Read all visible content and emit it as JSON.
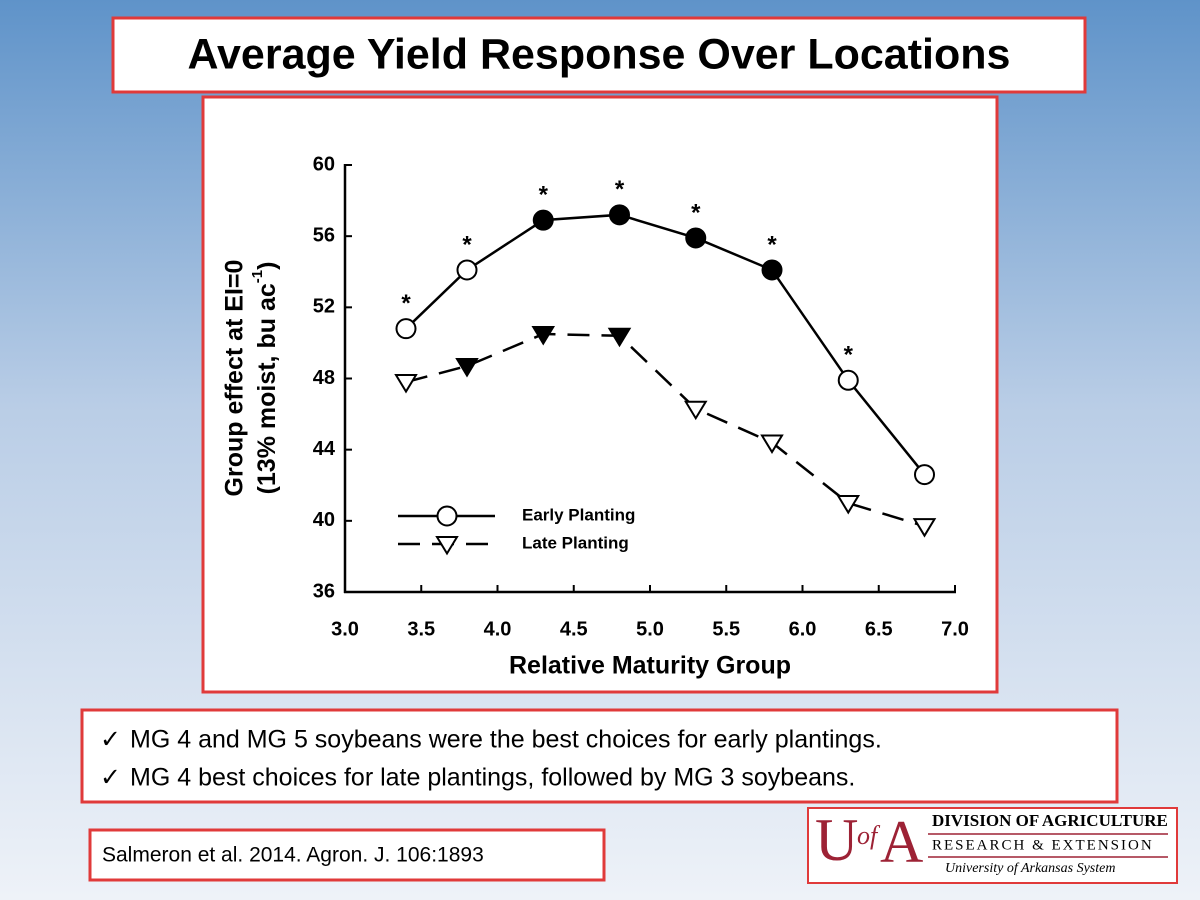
{
  "title": "Average Yield Response Over Locations",
  "chart_data": {
    "type": "line",
    "xlabel": "Relative Maturity Group",
    "ylabel": {
      "line1": "Group effect at EI=0",
      "line2": "(13% moist, bu ac",
      "line2_sup": "-1",
      "line2_end": ")"
    },
    "x": [
      3.4,
      3.8,
      4.3,
      4.8,
      5.3,
      5.8,
      6.3,
      6.8
    ],
    "series": [
      {
        "name": "Early Planting",
        "color": "#000000",
        "line_style": "solid",
        "marker": "circle",
        "values": [
          50.8,
          54.1,
          56.9,
          57.2,
          55.9,
          54.1,
          47.9,
          42.6
        ],
        "filled": [
          false,
          false,
          true,
          true,
          true,
          true,
          false,
          false
        ],
        "point_labels": [
          "*",
          "*",
          "*",
          "*",
          "*",
          "*",
          "*",
          null
        ]
      },
      {
        "name": "Late Planting",
        "color": "#000000",
        "line_style": "dashed",
        "marker": "triangle-down",
        "values": [
          47.8,
          48.7,
          50.5,
          50.4,
          46.3,
          44.4,
          41.0,
          39.7
        ],
        "filled": [
          false,
          true,
          true,
          true,
          false,
          false,
          false,
          false
        ]
      }
    ],
    "xlim": [
      3,
      7
    ],
    "xticks": [
      {
        "value": 3,
        "label": "3.0"
      },
      3.5,
      {
        "value": 4,
        "label": "4.0"
      },
      4.5,
      {
        "value": 5,
        "label": "5.0"
      },
      5.5,
      {
        "value": 6,
        "label": "6.0"
      },
      6.5,
      {
        "value": 7,
        "label": "7.0"
      }
    ],
    "ylim": [
      36,
      60
    ],
    "yticks": [
      36,
      40,
      44,
      48,
      52,
      56,
      60
    ],
    "grid": false,
    "legend": "lower left"
  },
  "bullet_marker": "✓",
  "bullets": [
    "MG 4 and MG 5 soybeans were the best choices for early plantings.",
    "MG 4 best choices for late plantings, followed by MG 3 soybeans."
  ],
  "citation": "Salmeron et al. 2014. Agron. J. 106:1893",
  "logo": {
    "mark_u": "U",
    "mark_of": "of",
    "mark_a": "A",
    "line1": "DIVISION OF AGRICULTURE",
    "line2": "RESEARCH & EXTENSION",
    "line3": "University of Arkansas System"
  }
}
